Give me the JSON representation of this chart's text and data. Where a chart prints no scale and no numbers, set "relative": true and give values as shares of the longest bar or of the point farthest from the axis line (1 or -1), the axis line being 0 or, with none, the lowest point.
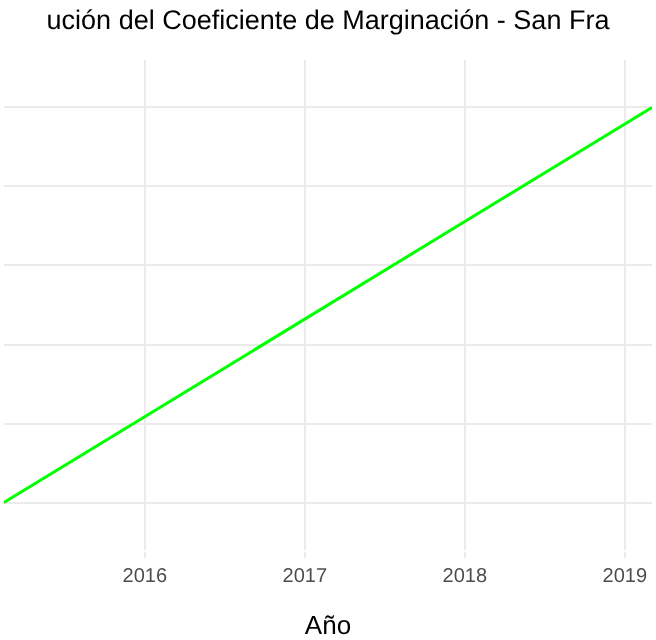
{
  "chart_data": {
    "type": "line",
    "title": "ución del Coeficiente de Marginación - San Fra",
    "xlabel": "Año",
    "relative": true,
    "x": [
      2015.12,
      2019.17
    ],
    "series": [
      {
        "color": "#00ff00",
        "values": [
          0,
          1
        ]
      }
    ],
    "xlim": [
      2015.12,
      2019.17
    ],
    "xticks": [
      2016,
      2017,
      2018,
      2019
    ],
    "grid": true,
    "tick_labels": "x"
  }
}
